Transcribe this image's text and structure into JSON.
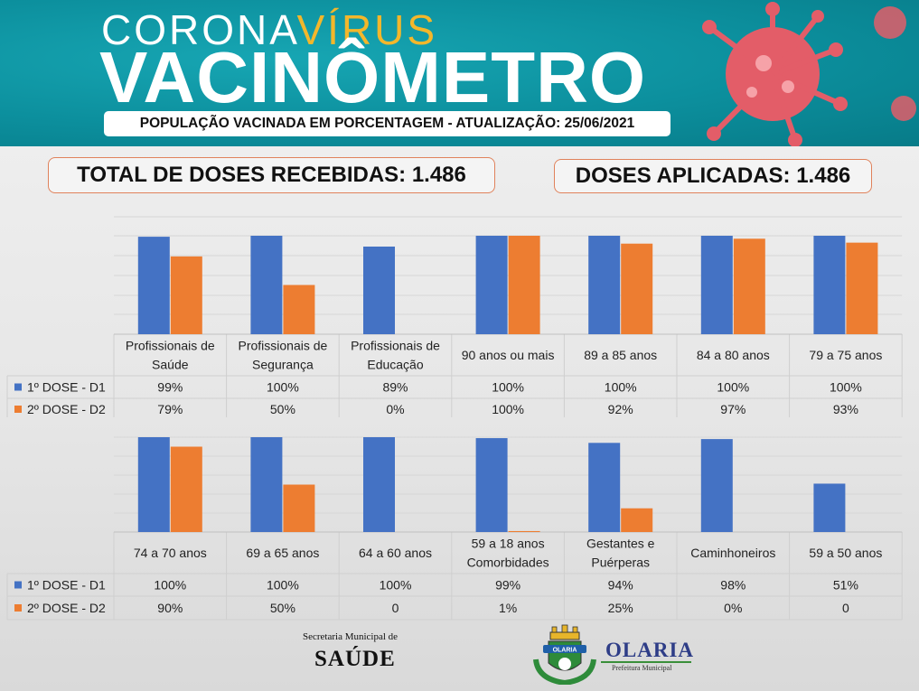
{
  "header": {
    "corona": "CORONA",
    "virus": "VÍRUS",
    "title": "VACINÔMETRO",
    "subtitle": "POPULAÇÃO VACINADA EM PORCENTAGEM - ATUALIZAÇÃO: 25/06/2021"
  },
  "totals": {
    "received": "TOTAL DE DOSES RECEBIDAS: 1.486",
    "applied": "DOSES APLICADAS: 1.486"
  },
  "colors": {
    "dose1": "#4472c4",
    "dose2": "#ed7d31",
    "header": "#0c8f9d",
    "virus": "#ef5b66"
  },
  "footer": {
    "secretaria": "Secretaria Municipal de",
    "saude": "SAÚDE",
    "olaria": "OLARIA",
    "prefeitura": "Prefeitura Municipal",
    "badge": "OLARIA"
  },
  "chart_data": [
    {
      "type": "bar",
      "categories": [
        [
          "Profissionais de",
          "Saúde"
        ],
        [
          "Profissionais de",
          "Segurança"
        ],
        [
          "Profissionais de",
          "Educação"
        ],
        [
          "90 anos ou mais"
        ],
        [
          "89 a 85 anos"
        ],
        [
          "84 a 80 anos"
        ],
        [
          "79 a 75 anos"
        ]
      ],
      "series": [
        {
          "name": "1º DOSE - D1",
          "values": [
            99,
            100,
            89,
            100,
            100,
            100,
            100
          ],
          "labels": [
            "99%",
            "100%",
            "89%",
            "100%",
            "100%",
            "100%",
            "100%"
          ]
        },
        {
          "name": "2º DOSE - D2",
          "values": [
            79,
            50,
            0,
            100,
            92,
            97,
            93
          ],
          "labels": [
            "79%",
            "50%",
            "0%",
            "100%",
            "92%",
            "97%",
            "93%"
          ]
        }
      ],
      "ylim": [
        0,
        100
      ],
      "grid": true,
      "legend": "data table"
    },
    {
      "type": "bar",
      "categories": [
        [
          "74 a 70 anos"
        ],
        [
          "69 a 65 anos"
        ],
        [
          "64 a 60 anos"
        ],
        [
          "59 a 18 anos",
          "Comorbidades"
        ],
        [
          "Gestantes e",
          "Puérperas"
        ],
        [
          "Caminhoneiros"
        ],
        [
          "59 a 50 anos"
        ]
      ],
      "series": [
        {
          "name": "1º DOSE - D1",
          "values": [
            100,
            100,
            100,
            99,
            94,
            98,
            51
          ],
          "labels": [
            "100%",
            "100%",
            "100%",
            "99%",
            "94%",
            "98%",
            "51%"
          ]
        },
        {
          "name": "2º DOSE - D2",
          "values": [
            90,
            50,
            0,
            1,
            25,
            0,
            0
          ],
          "labels": [
            "90%",
            "50%",
            "0",
            "1%",
            "25%",
            "0%",
            "0"
          ]
        }
      ],
      "ylim": [
        0,
        100
      ],
      "grid": true,
      "legend": "data table"
    }
  ]
}
